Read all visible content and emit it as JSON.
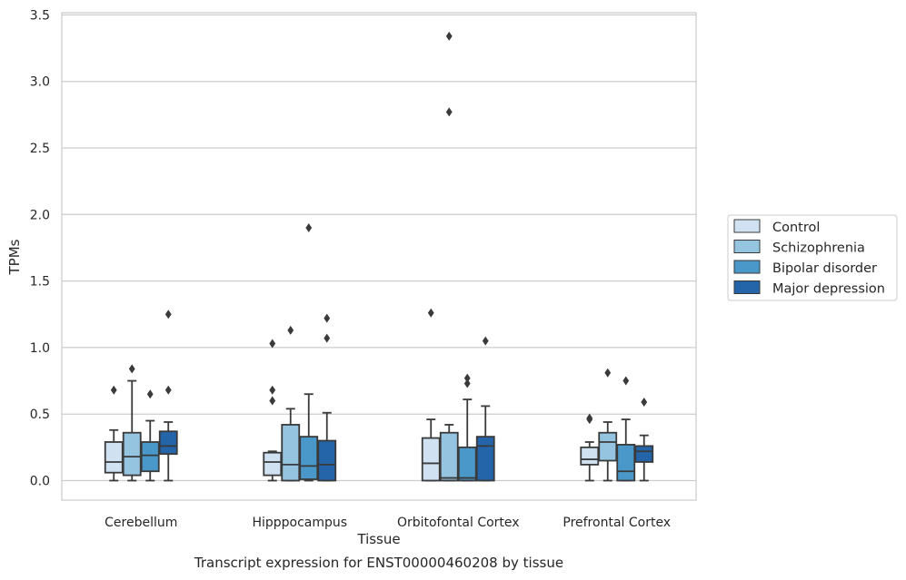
{
  "chart_data": {
    "type": "boxplot",
    "xlabel": "Tissue",
    "ylabel": "TPMs",
    "caption": "Transcript expression for ENST00000460208 by tissue",
    "ylim": [
      -0.16,
      3.52
    ],
    "yticks": [
      0.0,
      0.5,
      1.0,
      1.5,
      2.0,
      2.5,
      3.0,
      3.5
    ],
    "ytick_labels": [
      "0.0",
      "0.5",
      "1.0",
      "1.5",
      "2.0",
      "2.5",
      "3.0",
      "3.5"
    ],
    "grid": true,
    "legend_position": "right",
    "categories": [
      "Cerebellum",
      "Hipppocampus",
      "Orbitofontal Cortex",
      "Prefrontal Cortex"
    ],
    "series": [
      {
        "name": "Control",
        "color": "#d0e1f2",
        "boxes": [
          {
            "q1": 0.06,
            "median": 0.14,
            "q3": 0.29,
            "whislo": 0.0,
            "whishi": 0.38,
            "fliers": [
              0.68
            ]
          },
          {
            "q1": 0.04,
            "median": 0.14,
            "q3": 0.21,
            "whislo": 0.0,
            "whishi": 0.22,
            "fliers": [
              0.6,
              0.68,
              1.03
            ]
          },
          {
            "q1": 0.0,
            "median": 0.13,
            "q3": 0.32,
            "whislo": 0.0,
            "whishi": 0.46,
            "fliers": [
              1.26
            ]
          },
          {
            "q1": 0.12,
            "median": 0.16,
            "q3": 0.25,
            "whislo": 0.0,
            "whishi": 0.29,
            "fliers": [
              0.46,
              0.47
            ]
          }
        ]
      },
      {
        "name": "Schizophrenia",
        "color": "#94c4df",
        "boxes": [
          {
            "q1": 0.04,
            "median": 0.18,
            "q3": 0.36,
            "whislo": 0.0,
            "whishi": 0.75,
            "fliers": [
              0.84
            ]
          },
          {
            "q1": 0.0,
            "median": 0.12,
            "q3": 0.42,
            "whislo": 0.0,
            "whishi": 0.54,
            "fliers": [
              1.13
            ]
          },
          {
            "q1": 0.0,
            "median": 0.02,
            "q3": 0.36,
            "whislo": 0.0,
            "whishi": 0.42,
            "fliers": [
              2.77,
              3.34
            ]
          },
          {
            "q1": 0.15,
            "median": 0.29,
            "q3": 0.36,
            "whislo": 0.0,
            "whishi": 0.44,
            "fliers": [
              0.81
            ]
          }
        ]
      },
      {
        "name": "Bipolar disorder",
        "color": "#4a98c9",
        "boxes": [
          {
            "q1": 0.07,
            "median": 0.19,
            "q3": 0.29,
            "whislo": 0.0,
            "whishi": 0.45,
            "fliers": [
              0.65
            ]
          },
          {
            "q1": 0.01,
            "median": 0.11,
            "q3": 0.33,
            "whislo": 0.0,
            "whishi": 0.65,
            "fliers": [
              1.9
            ]
          },
          {
            "q1": 0.0,
            "median": 0.02,
            "q3": 0.25,
            "whislo": 0.0,
            "whishi": 0.61,
            "fliers": [
              0.73,
              0.77
            ]
          },
          {
            "q1": 0.0,
            "median": 0.07,
            "q3": 0.27,
            "whislo": 0.0,
            "whishi": 0.46,
            "fliers": [
              0.75
            ]
          }
        ]
      },
      {
        "name": "Major depression",
        "color": "#2464a8",
        "boxes": [
          {
            "q1": 0.2,
            "median": 0.26,
            "q3": 0.37,
            "whislo": 0.0,
            "whishi": 0.44,
            "fliers": [
              0.68,
              1.25
            ]
          },
          {
            "q1": 0.0,
            "median": 0.12,
            "q3": 0.3,
            "whislo": 0.0,
            "whishi": 0.51,
            "fliers": [
              1.07,
              1.22
            ]
          },
          {
            "q1": 0.0,
            "median": 0.26,
            "q3": 0.33,
            "whislo": 0.0,
            "whishi": 0.56,
            "fliers": [
              1.05
            ]
          },
          {
            "q1": 0.14,
            "median": 0.22,
            "q3": 0.26,
            "whislo": 0.0,
            "whishi": 0.34,
            "fliers": [
              0.59
            ]
          }
        ]
      }
    ]
  }
}
